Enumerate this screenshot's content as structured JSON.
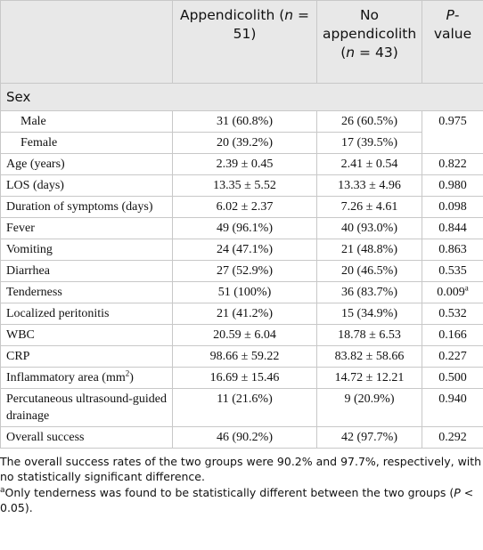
{
  "table": {
    "header": [
      [
        "Appendicolith (",
        {
          "i": "n"
        },
        " = 51)"
      ],
      [
        "No appendicolith (",
        {
          "i": "n"
        },
        " = 43)"
      ],
      [
        {
          "i": "P"
        },
        "-value"
      ]
    ],
    "section": "Sex",
    "sex_rows": [
      [
        "Male",
        "31 (60.8%)",
        "26 (60.5%)",
        "0.975"
      ],
      [
        "Female",
        "20 (39.2%)",
        "17 (39.5%)"
      ]
    ],
    "rows": [
      [
        "Age (years)",
        "2.39 ± 0.45",
        "2.41 ± 0.54",
        "0.822"
      ],
      [
        "LOS (days)",
        "13.35 ± 5.52",
        "13.33 ± 4.96",
        "0.980"
      ],
      [
        "Duration of symptoms (days)",
        "6.02 ± 2.37",
        "7.26 ± 4.61",
        "0.098"
      ],
      [
        "Fever",
        "49 (96.1%)",
        "40 (93.0%)",
        "0.844"
      ],
      [
        "Vomiting",
        "24 (47.1%)",
        "21 (48.8%)",
        "0.863"
      ],
      [
        "Diarrhea",
        "27 (52.9%)",
        "20 (46.5%)",
        "0.535"
      ],
      [
        "Tenderness",
        "51 (100%)",
        "36 (83.7%)",
        [
          "0.009",
          {
            "sup": "a"
          }
        ]
      ],
      [
        "Localized peritonitis",
        "21 (41.2%)",
        "15 (34.9%)",
        "0.532"
      ],
      [
        "WBC",
        "20.59 ± 6.04",
        "18.78 ± 6.53",
        "0.166"
      ],
      [
        "CRP",
        "98.66 ± 59.22",
        "83.82 ± 58.66",
        "0.227"
      ],
      [
        [
          "Inflammatory area (mm",
          {
            "sup": "2"
          },
          ")"
        ],
        "16.69 ± 15.46",
        "14.72 ± 12.21",
        "0.500"
      ],
      [
        "Percutaneous ultrasound-guided drainage",
        "11 (21.6%)",
        "9 (20.9%)",
        "0.940"
      ],
      [
        "Overall success",
        "46 (90.2%)",
        "42 (97.7%)",
        "0.292"
      ]
    ]
  },
  "notes": [
    "The overall success rates of the two groups were 90.2% and 97.7%, respectively, with no statistically significant difference.",
    [
      {
        "sup": "a"
      },
      "Only tenderness was found to be statistically different between the two groups (",
      {
        "i": "P"
      },
      " < 0.05)."
    ]
  ]
}
